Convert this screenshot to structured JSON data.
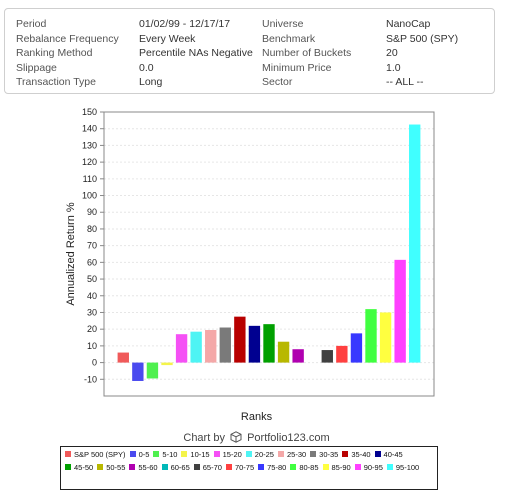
{
  "settings": {
    "left": [
      {
        "label": "Period",
        "value": "01/02/99 - 12/17/17"
      },
      {
        "label": "Rebalance Frequency",
        "value": "Every Week"
      },
      {
        "label": "Ranking Method",
        "value": "Percentile NAs Negative"
      },
      {
        "label": "Slippage",
        "value": "0.0"
      },
      {
        "label": "Transaction Type",
        "value": "Long"
      }
    ],
    "right": [
      {
        "label": "Universe",
        "value": "NanoCap"
      },
      {
        "label": "Benchmark",
        "value": "S&P 500 (SPY)"
      },
      {
        "label": "Number of Buckets",
        "value": "20"
      },
      {
        "label": "Minimum Price",
        "value": "1.0"
      },
      {
        "label": "Sector",
        "value": "-- ALL --"
      }
    ]
  },
  "credit": {
    "prefix": "Chart by",
    "brand": "Portfolio123.com"
  },
  "chart_data": {
    "type": "bar",
    "xlabel": "Ranks",
    "ylabel": "Annualized Return %",
    "ylim": [
      -20,
      150
    ],
    "yticks": [
      -10,
      0,
      10,
      20,
      30,
      40,
      50,
      60,
      70,
      80,
      90,
      100,
      110,
      120,
      130,
      140,
      150
    ],
    "grid": true,
    "legend_position": "bottom",
    "categories": [
      "S&P 500 (SPY)",
      "0-5",
      "5-10",
      "10-15",
      "15-20",
      "20-25",
      "25-30",
      "30-35",
      "35-40",
      "40-45",
      "45-50",
      "50-55",
      "55-60",
      "60-65",
      "65-70",
      "70-75",
      "75-80",
      "80-85",
      "85-90",
      "90-95",
      "95-100"
    ],
    "values": [
      6,
      -11,
      -9.5,
      -1.5,
      17,
      18.5,
      19.5,
      21,
      27.5,
      22,
      23,
      12.5,
      8,
      0,
      7.5,
      10,
      17.5,
      32,
      30,
      61.5,
      142.5
    ],
    "colors": [
      "#f05a5a",
      "#4a4aef",
      "#4ff04f",
      "#f4f44a",
      "#f550f5",
      "#4ef4f4",
      "#f4a8a8",
      "#7a7a7a",
      "#b80000",
      "#000090",
      "#00a000",
      "#b8b800",
      "#b000b0",
      "#00b8b8",
      "#404040",
      "#ff4040",
      "#3838ff",
      "#40ff40",
      "#ffff40",
      "#ff40ff",
      "#40ffff"
    ]
  }
}
